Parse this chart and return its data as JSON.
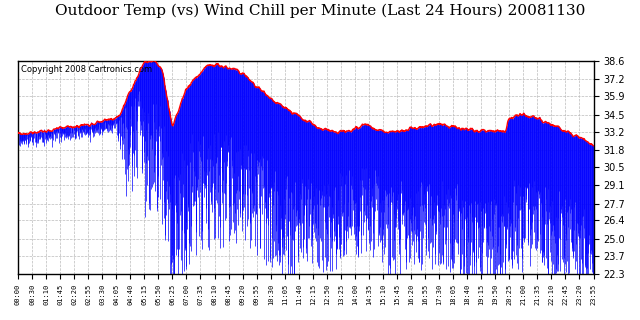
{
  "title": "Outdoor Temp (vs) Wind Chill per Minute (Last 24 Hours) 20081130",
  "copyright_text": "Copyright 2008 Cartronics.com",
  "background_color": "#ffffff",
  "plot_bg_color": "#ffffff",
  "grid_color": "#bbbbbb",
  "title_fontsize": 11,
  "ylabel_right": [
    "38.6",
    "37.2",
    "35.9",
    "34.5",
    "33.2",
    "31.8",
    "30.5",
    "29.1",
    "27.7",
    "26.4",
    "25.0",
    "23.7",
    "22.3"
  ],
  "ymin": 22.3,
  "ymax": 38.6,
  "num_minutes": 1440,
  "x_tick_labels": [
    "00:00",
    "00:30",
    "01:10",
    "01:45",
    "02:20",
    "02:55",
    "03:30",
    "04:05",
    "04:40",
    "05:15",
    "05:50",
    "06:25",
    "07:00",
    "07:35",
    "08:10",
    "08:45",
    "09:20",
    "09:55",
    "10:30",
    "11:05",
    "11:40",
    "12:15",
    "12:50",
    "13:25",
    "14:00",
    "14:35",
    "15:10",
    "15:45",
    "16:20",
    "16:55",
    "17:30",
    "18:05",
    "18:40",
    "19:15",
    "19:50",
    "20:25",
    "21:00",
    "21:35",
    "22:10",
    "22:45",
    "23:20",
    "23:55"
  ]
}
